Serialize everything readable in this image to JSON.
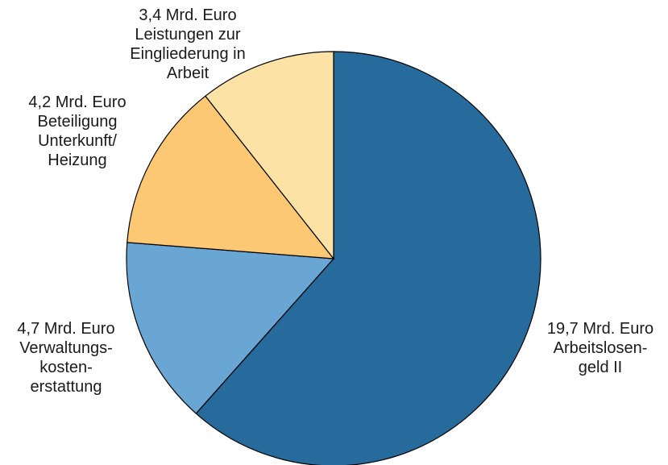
{
  "chart_data": {
    "type": "pie",
    "title": "",
    "unit": "Mrd. Euro",
    "slices": [
      {
        "value": 19.7,
        "value_label": "19,7 Mrd. Euro",
        "label_lines": [
          "Arbeitslosen-",
          "geld II"
        ],
        "color": "#276b9c"
      },
      {
        "value": 4.7,
        "value_label": "4,7 Mrd. Euro",
        "label_lines": [
          "Verwaltungs-",
          "kosten-",
          "erstattung"
        ],
        "color": "#6aa6d3"
      },
      {
        "value": 4.2,
        "value_label": "4,2 Mrd. Euro",
        "label_lines": [
          "Beteiligung",
          "Unterkunft/",
          "Heizung"
        ],
        "color": "#fdc874"
      },
      {
        "value": 3.4,
        "value_label": "3,4 Mrd. Euro",
        "label_lines": [
          "Leistungen zur",
          "Eingliederung in",
          "Arbeit"
        ],
        "color": "#fde2a6"
      }
    ],
    "start": "12 o'clock",
    "direction": "clockwise",
    "legend": "none"
  }
}
